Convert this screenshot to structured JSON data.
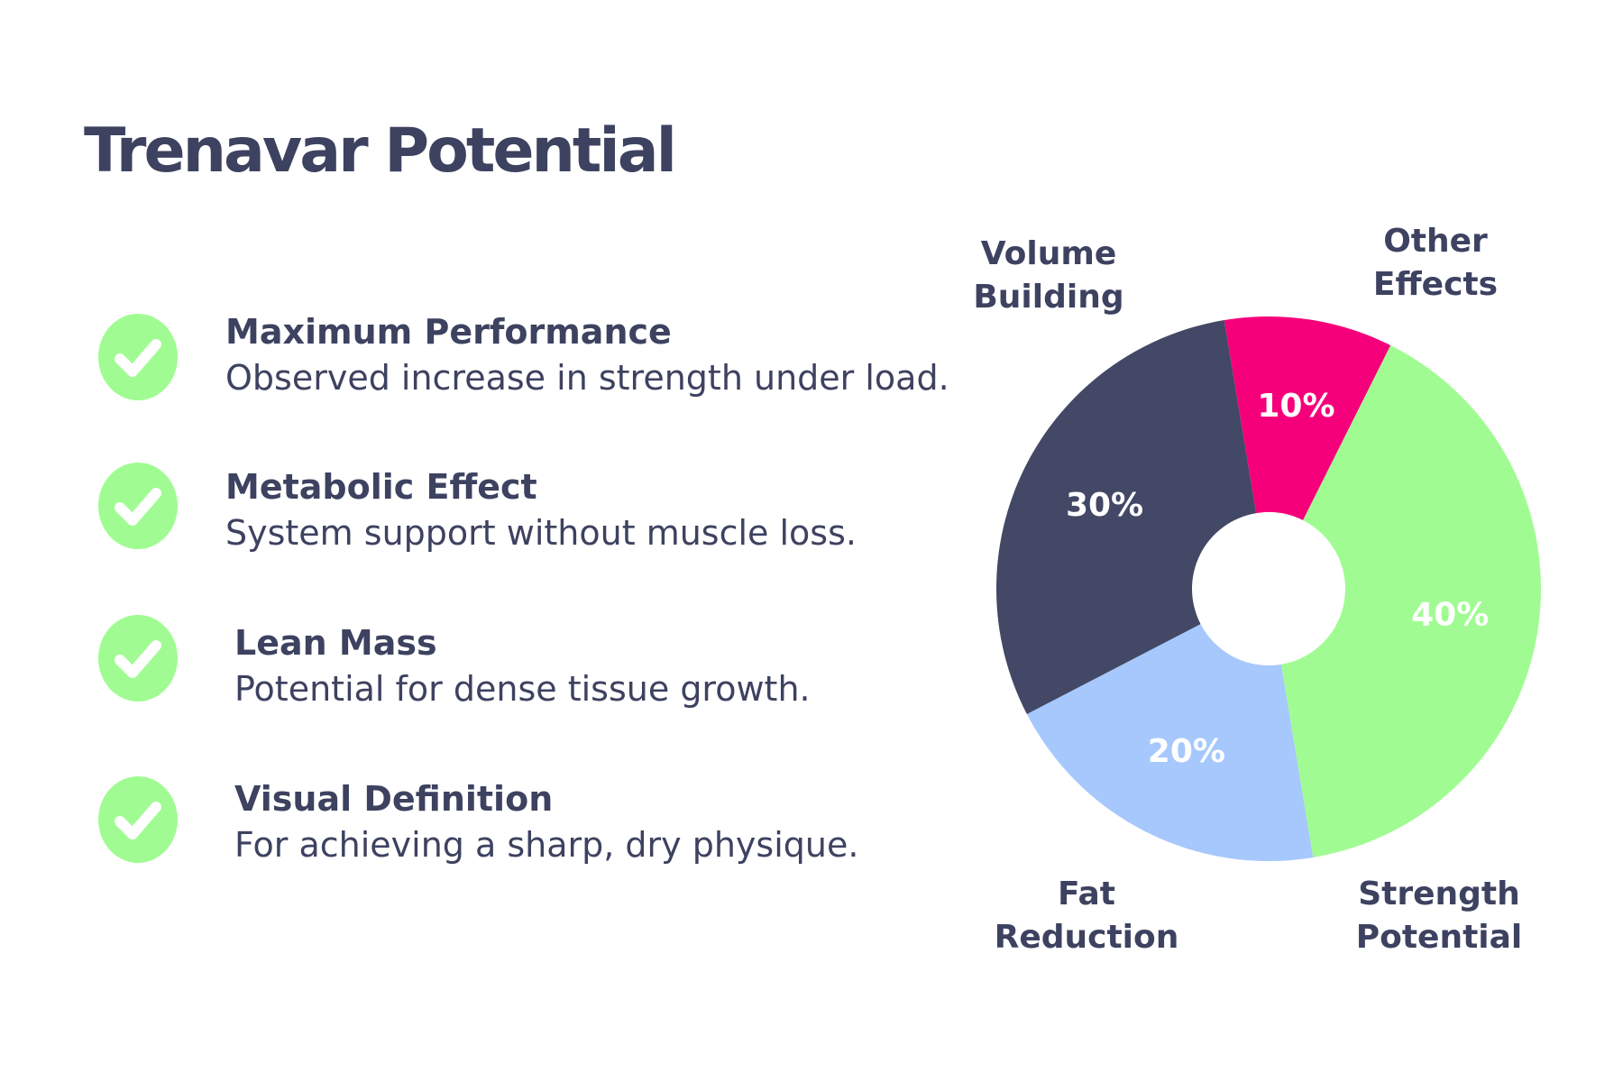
{
  "header": {
    "title": "Trenavar Potential"
  },
  "items": [
    {
      "title": "Maximum Performance",
      "description": "Observed increase in strength under load."
    },
    {
      "title": "Metabolic Effect",
      "description": "System support without muscle loss."
    },
    {
      "title": "Lean Mass",
      "description": "Potential for dense tissue growth."
    },
    {
      "title": "Visual Definition",
      "description": "For achieving a sharp, dry physique."
    }
  ],
  "chart_data": {
    "type": "pie",
    "categories": [
      "Other Effects",
      "Strength Potential",
      "Fat Reduction",
      "Volume Building"
    ],
    "values": [
      10,
      40,
      20,
      30
    ],
    "value_labels": [
      "10%",
      "40%",
      "20%",
      "30%"
    ],
    "colors": [
      "#f5007a",
      "#a0fc92",
      "#a6c8fc",
      "#424865"
    ],
    "donut": true
  }
}
